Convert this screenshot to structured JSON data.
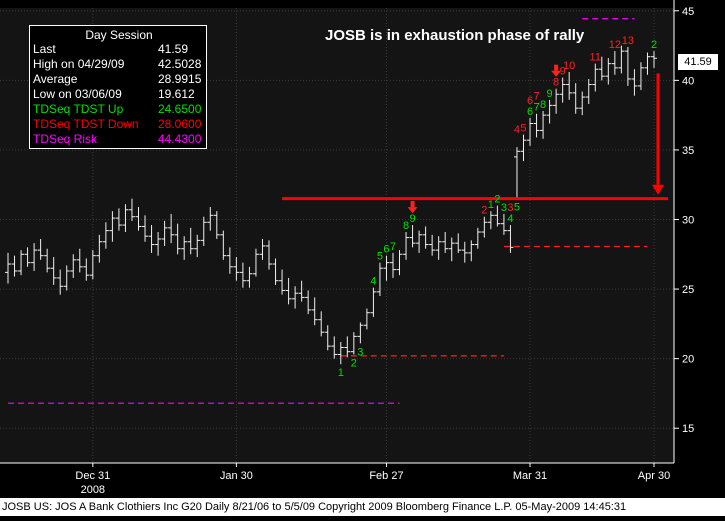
{
  "headline": "JOSB is in exhaustion phase of rally",
  "legend": {
    "title": "Day Session",
    "rows": [
      {
        "label": "Last",
        "value": "41.59",
        "color": "#ffffff"
      },
      {
        "label": "High on  04/29/09",
        "value": "42.5028",
        "color": "#ffffff"
      },
      {
        "label": "Average",
        "value": "28.9915",
        "color": "#ffffff"
      },
      {
        "label": "Low on  03/06/09",
        "value": "19.612",
        "color": "#ffffff"
      },
      {
        "label": "TDSeq TDST Up",
        "value": "24.6500",
        "color": "#00e000"
      },
      {
        "label": "TDSeq TDST Down",
        "value": "28.0600",
        "color": "#ff0000"
      },
      {
        "label": "TDSeq Risk",
        "value": "44.4300",
        "color": "#ff00ff"
      }
    ]
  },
  "last_badge": "41.59",
  "footer": "JOSB  US:  JOS A Bank Clothiers Inc    G20   Daily  8/21/06 to 5/5/09   Copyright 2009 Bloomberg Finance L.P.   05-May-2009 14:45:31",
  "chart_data": {
    "type": "bar",
    "subtype": "ohlc",
    "y_axis": {
      "range": [
        12.5,
        45.2
      ],
      "ticks": [
        15,
        20,
        25,
        30,
        35,
        40,
        45
      ],
      "position": "right"
    },
    "x_axis": {
      "tick_labels": [
        "Dec 31",
        "Jan 30",
        "Feb 27",
        "Mar 31",
        "Apr 30"
      ],
      "sub_label": "2008"
    },
    "ohlc": [
      [
        26.2,
        27.6,
        25.4,
        26.8
      ],
      [
        26.8,
        27.4,
        25.9,
        26.3
      ],
      [
        26.3,
        27.8,
        26.0,
        27.5
      ],
      [
        27.5,
        28.0,
        26.6,
        26.9
      ],
      [
        26.9,
        28.3,
        26.3,
        27.8
      ],
      [
        27.8,
        28.6,
        27.1,
        27.4
      ],
      [
        27.4,
        27.9,
        26.2,
        26.5
      ],
      [
        26.5,
        27.3,
        25.3,
        25.8
      ],
      [
        25.8,
        26.4,
        24.6,
        25.2
      ],
      [
        25.2,
        26.7,
        24.9,
        26.3
      ],
      [
        26.3,
        27.5,
        25.8,
        27.1
      ],
      [
        27.1,
        27.9,
        26.2,
        26.6
      ],
      [
        26.6,
        27.2,
        25.6,
        26.0
      ],
      [
        26.0,
        27.8,
        25.7,
        27.4
      ],
      [
        27.4,
        28.9,
        26.9,
        28.4
      ],
      [
        28.4,
        29.8,
        27.9,
        29.2
      ],
      [
        29.2,
        30.6,
        28.4,
        30.1
      ],
      [
        30.1,
        30.8,
        29.2,
        29.6
      ],
      [
        29.6,
        31.1,
        29.1,
        30.7
      ],
      [
        30.7,
        31.5,
        29.9,
        30.2
      ],
      [
        30.2,
        30.9,
        29.2,
        29.5
      ],
      [
        29.5,
        30.3,
        28.4,
        28.8
      ],
      [
        28.8,
        29.6,
        27.6,
        28.2
      ],
      [
        28.2,
        29.1,
        27.4,
        28.6
      ],
      [
        28.6,
        29.9,
        28.1,
        29.4
      ],
      [
        29.4,
        30.4,
        28.3,
        28.9
      ],
      [
        28.9,
        29.7,
        27.5,
        27.9
      ],
      [
        27.9,
        28.8,
        27.1,
        28.4
      ],
      [
        28.4,
        29.4,
        27.5,
        27.9
      ],
      [
        27.9,
        28.9,
        27.3,
        28.5
      ],
      [
        28.5,
        30.2,
        28.1,
        29.8
      ],
      [
        29.8,
        30.9,
        29.2,
        30.3
      ],
      [
        30.3,
        30.6,
        28.6,
        28.9
      ],
      [
        28.9,
        29.2,
        27.1,
        27.4
      ],
      [
        27.4,
        28.0,
        26.1,
        26.6
      ],
      [
        26.6,
        27.3,
        25.6,
        26.2
      ],
      [
        26.2,
        26.9,
        25.1,
        25.6
      ],
      [
        25.6,
        26.6,
        25.1,
        26.1
      ],
      [
        26.1,
        27.9,
        25.9,
        27.5
      ],
      [
        27.5,
        28.6,
        27.1,
        28.1
      ],
      [
        28.1,
        28.5,
        26.4,
        26.8
      ],
      [
        26.8,
        27.2,
        25.3,
        25.6
      ],
      [
        25.6,
        26.4,
        24.6,
        24.9
      ],
      [
        24.9,
        25.8,
        23.9,
        24.3
      ],
      [
        24.3,
        25.2,
        23.6,
        24.7
      ],
      [
        24.7,
        25.6,
        24.1,
        24.4
      ],
      [
        24.4,
        24.9,
        23.2,
        23.5
      ],
      [
        23.5,
        24.4,
        22.4,
        22.8
      ],
      [
        22.8,
        23.4,
        21.6,
        21.9
      ],
      [
        21.9,
        22.4,
        20.6,
        20.9
      ],
      [
        20.9,
        21.6,
        20.0,
        20.3
      ],
      [
        20.3,
        21.2,
        19.6,
        20.8
      ],
      [
        20.8,
        21.6,
        20.1,
        20.5
      ],
      [
        20.5,
        21.9,
        20.3,
        21.6
      ],
      [
        21.6,
        22.6,
        21.1,
        22.4
      ],
      [
        22.4,
        23.6,
        22.1,
        23.3
      ],
      [
        23.3,
        25.1,
        23.0,
        24.8
      ],
      [
        24.8,
        26.9,
        24.5,
        26.5
      ],
      [
        26.5,
        27.4,
        25.6,
        26.9
      ],
      [
        26.9,
        27.6,
        25.8,
        26.4
      ],
      [
        26.4,
        27.8,
        26.0,
        27.5
      ],
      [
        27.5,
        29.1,
        27.1,
        28.7
      ],
      [
        28.7,
        29.6,
        28.0,
        28.3
      ],
      [
        28.3,
        29.2,
        27.6,
        28.9
      ],
      [
        28.9,
        29.5,
        27.9,
        28.2
      ],
      [
        28.2,
        28.9,
        27.4,
        27.8
      ],
      [
        27.8,
        28.8,
        27.1,
        28.4
      ],
      [
        28.4,
        29.1,
        27.6,
        27.9
      ],
      [
        27.9,
        28.7,
        27.0,
        28.3
      ],
      [
        28.3,
        29.0,
        27.6,
        27.8
      ],
      [
        27.8,
        28.4,
        26.9,
        27.6
      ],
      [
        27.6,
        28.5,
        27.0,
        28.2
      ],
      [
        28.2,
        29.4,
        27.9,
        29.1
      ],
      [
        29.1,
        30.2,
        28.7,
        29.8
      ],
      [
        29.8,
        30.6,
        29.3,
        30.3
      ],
      [
        30.3,
        31.0,
        29.5,
        29.7
      ],
      [
        29.7,
        30.4,
        28.9,
        29.2
      ],
      [
        29.2,
        29.6,
        27.6,
        28.0
      ],
      [
        34.5,
        35.2,
        31.5,
        34.9
      ],
      [
        34.9,
        36.1,
        34.2,
        35.7
      ],
      [
        35.7,
        37.3,
        35.3,
        36.9
      ],
      [
        36.9,
        37.6,
        35.9,
        36.4
      ],
      [
        36.4,
        37.8,
        35.8,
        37.5
      ],
      [
        37.5,
        38.6,
        36.9,
        38.2
      ],
      [
        38.2,
        39.4,
        37.6,
        39.0
      ],
      [
        39.0,
        40.2,
        38.4,
        39.7
      ],
      [
        39.7,
        40.6,
        38.6,
        39.1
      ],
      [
        39.1,
        39.8,
        37.6,
        38.0
      ],
      [
        38.0,
        39.2,
        37.5,
        38.8
      ],
      [
        38.8,
        40.1,
        38.3,
        39.7
      ],
      [
        39.7,
        41.2,
        39.2,
        40.8
      ],
      [
        40.8,
        41.7,
        40.0,
        40.3
      ],
      [
        40.3,
        41.6,
        39.7,
        41.2
      ],
      [
        41.2,
        42.1,
        40.4,
        40.9
      ],
      [
        40.9,
        42.5,
        40.5,
        42.1
      ],
      [
        42.1,
        42.4,
        39.6,
        40.1
      ],
      [
        40.1,
        40.8,
        38.9,
        39.6
      ],
      [
        39.6,
        41.3,
        39.3,
        40.9
      ],
      [
        40.9,
        42.0,
        40.4,
        41.7
      ],
      [
        41.7,
        42.1,
        40.9,
        41.59
      ]
    ],
    "setup_counts": [
      {
        "bar": 51,
        "text": "1",
        "color": "#00e000",
        "pos": "below"
      },
      {
        "bar": 53,
        "text": "2",
        "color": "#00e000",
        "pos": "below"
      },
      {
        "bar": 54,
        "text": "3",
        "color": "#00e000",
        "pos": "below"
      },
      {
        "bar": 56,
        "text": "4",
        "color": "#00e000",
        "pos": "above"
      },
      {
        "bar": 57,
        "text": "5",
        "color": "#00e000",
        "pos": "above"
      },
      {
        "bar": 58,
        "text": "6",
        "color": "#00e000",
        "pos": "above"
      },
      {
        "bar": 59,
        "text": "7",
        "color": "#00e000",
        "pos": "above"
      },
      {
        "bar": 61,
        "text": "8",
        "color": "#00e000",
        "pos": "above"
      },
      {
        "bar": 62,
        "text": "9",
        "color": "#00e000",
        "pos": "above"
      },
      {
        "bar": 73,
        "text": "2",
        "color": "#ff2020",
        "pos": "above"
      },
      {
        "bar": 74,
        "text": "1",
        "color": "#00e000",
        "pos": "above"
      },
      {
        "bar": 75,
        "text": "2",
        "color": "#00e000",
        "pos": "above"
      },
      {
        "bar": 76,
        "text": "3",
        "color": "#00e000",
        "pos": "above"
      },
      {
        "bar": 77,
        "text": "4",
        "color": "#00e000",
        "pos": "above"
      },
      {
        "bar": 77,
        "text": "3",
        "color": "#ff2020",
        "pos": "top"
      },
      {
        "bar": 78,
        "text": "4",
        "color": "#ff2020",
        "pos": "top"
      },
      {
        "bar": 78,
        "text": "5",
        "color": "#00e000",
        "pos": "below"
      },
      {
        "bar": 79,
        "text": "5",
        "color": "#ff2020",
        "pos": "above"
      },
      {
        "bar": 80,
        "text": "6",
        "color": "#00e000",
        "pos": "above"
      },
      {
        "bar": 80,
        "text": "6",
        "color": "#ff2020",
        "pos": "top"
      },
      {
        "bar": 81,
        "text": "7",
        "color": "#00e000",
        "pos": "above"
      },
      {
        "bar": 81,
        "text": "7",
        "color": "#ff2020",
        "pos": "top"
      },
      {
        "bar": 82,
        "text": "8",
        "color": "#00e000",
        "pos": "above"
      },
      {
        "bar": 83,
        "text": "9",
        "color": "#00e000",
        "pos": "above"
      },
      {
        "bar": 84,
        "text": "8",
        "color": "#ff2020",
        "pos": "above"
      },
      {
        "bar": 85,
        "text": "9",
        "color": "#ff2020",
        "pos": "above"
      },
      {
        "bar": 86,
        "text": "10",
        "color": "#ff2020",
        "pos": "above"
      },
      {
        "bar": 90,
        "text": "11",
        "color": "#ff2020",
        "pos": "above"
      },
      {
        "bar": 93,
        "text": "12",
        "color": "#ff2020",
        "pos": "above"
      },
      {
        "bar": 95,
        "text": "13",
        "color": "#ff2020",
        "pos": "above"
      },
      {
        "bar": 99,
        "text": "2",
        "color": "#00e000",
        "pos": "above"
      }
    ],
    "down_arrows": [
      {
        "bar": 62
      },
      {
        "bar": 84
      }
    ],
    "support_lines": [
      {
        "start_bar": 51,
        "end_bar": 76,
        "y": 20.2,
        "color": "#ff2020"
      },
      {
        "start_bar": 76,
        "end_bar": 98,
        "y": 28.06,
        "color": "#ff2020"
      },
      {
        "start_bar": 0,
        "end_bar": 60,
        "y": 16.8,
        "color": "#ff00ff"
      },
      {
        "start_bar": 88,
        "end_bar": 96,
        "y": 44.43,
        "color": "#ff00ff"
      }
    ],
    "resistance_line": {
      "start_bar": 42,
      "end_bar": 99,
      "y": 31.5,
      "color": "#ff0000"
    },
    "projection_arrow": {
      "bar": 99,
      "from": 40.5,
      "to": 32.5,
      "color": "#ff0000"
    }
  }
}
